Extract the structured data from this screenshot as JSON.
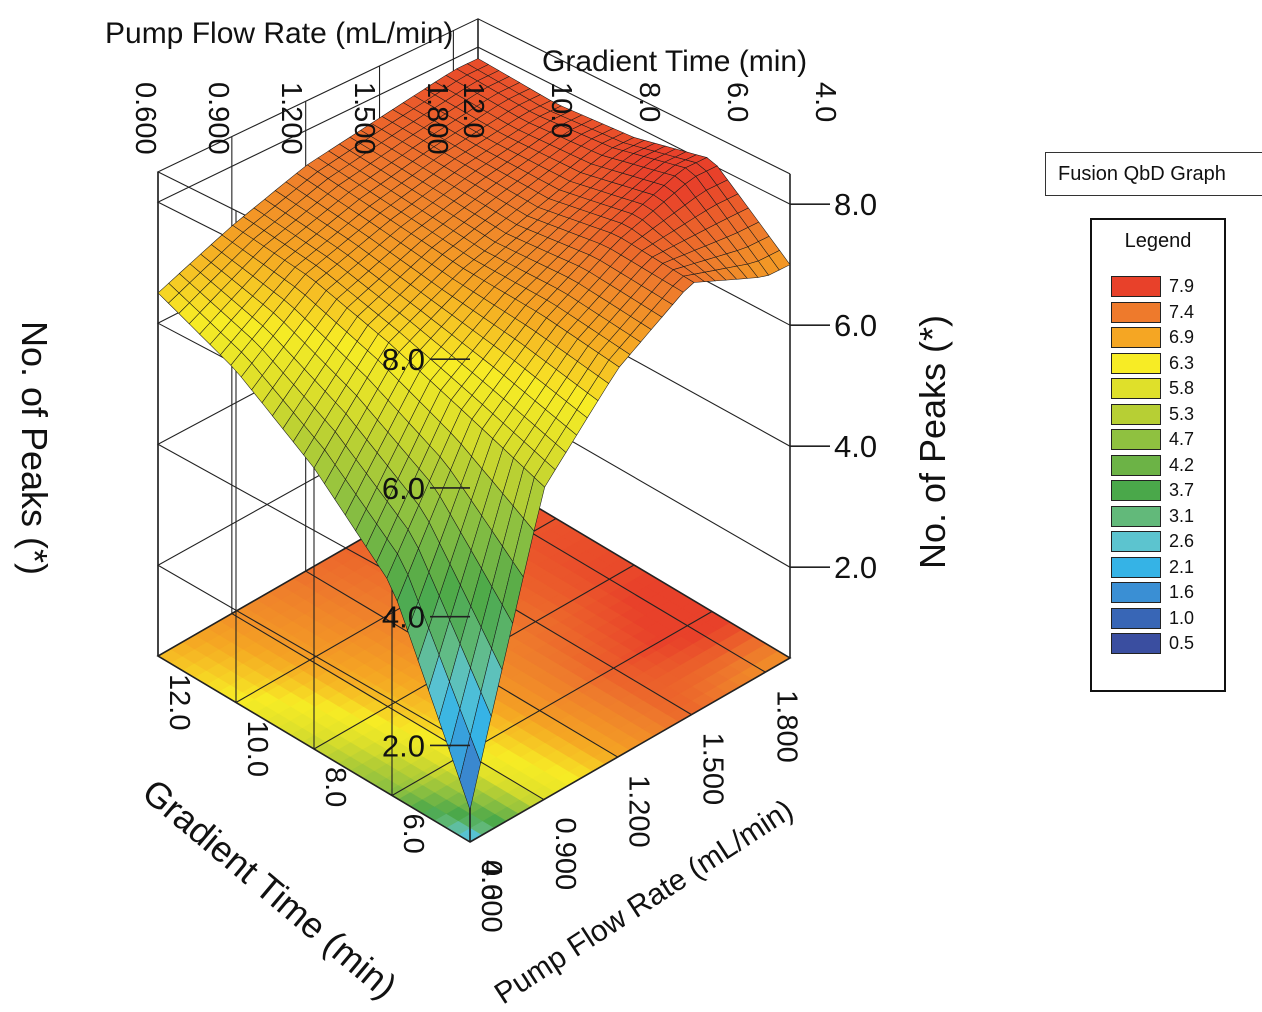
{
  "graph_title": "Fusion QbD Graph",
  "legend": {
    "title": "Legend",
    "items": [
      {
        "label": "7.9",
        "color": "#e8412a"
      },
      {
        "label": "7.4",
        "color": "#ee7a2c"
      },
      {
        "label": "6.9",
        "color": "#f5a623"
      },
      {
        "label": "6.3",
        "color": "#f7ec25"
      },
      {
        "label": "5.8",
        "color": "#dfe02a"
      },
      {
        "label": "5.3",
        "color": "#b7cf34"
      },
      {
        "label": "4.7",
        "color": "#8fc140"
      },
      {
        "label": "4.2",
        "color": "#6cb346"
      },
      {
        "label": "3.7",
        "color": "#4aa84a"
      },
      {
        "label": "3.1",
        "color": "#62b97a"
      },
      {
        "label": "2.6",
        "color": "#5cc4cf"
      },
      {
        "label": "2.1",
        "color": "#35b3e6"
      },
      {
        "label": "1.6",
        "color": "#3a8fd4"
      },
      {
        "label": "1.0",
        "color": "#3866b6"
      },
      {
        "label": "0.5",
        "color": "#3a4ea0"
      }
    ]
  },
  "chart_data": {
    "type": "surface",
    "title": "",
    "x_axis": {
      "label": "Pump Flow Rate (mL/min)",
      "range": [
        0.6,
        1.9
      ],
      "ticks": [
        0.6,
        0.9,
        1.2,
        1.5,
        1.8
      ],
      "tick_labels": [
        "0.600",
        "0.900",
        "1.200",
        "1.500",
        "1.800"
      ]
    },
    "y_axis": {
      "label": "Gradient Time (min)",
      "range": [
        4.0,
        12.0
      ],
      "ticks": [
        4.0,
        6.0,
        8.0,
        10.0,
        12.0
      ],
      "tick_labels": [
        "4.0",
        "6.0",
        "8.0",
        "10.0",
        "12.0"
      ]
    },
    "z_axis": {
      "label": "No. of Peaks (*)",
      "range": [
        0.5,
        8.5
      ],
      "ticks": [
        2.0,
        4.0,
        6.0,
        8.0
      ],
      "tick_labels": [
        "2.0",
        "4.0",
        "6.0",
        "8.0"
      ]
    },
    "flow_values": [
      0.6,
      0.9,
      1.2,
      1.5,
      1.8
    ],
    "time_values": [
      12.0,
      10.0,
      8.0,
      6.0,
      4.0
    ],
    "peaks_grid": [
      [
        6.5,
        7.0,
        7.4,
        7.6,
        7.8
      ],
      [
        5.9,
        6.8,
        7.2,
        7.5,
        7.7
      ],
      [
        5.0,
        6.4,
        7.0,
        7.4,
        7.8
      ],
      [
        3.8,
        5.9,
        6.9,
        7.6,
        8.1
      ],
      [
        1.0,
        5.4,
        6.7,
        7.5,
        7.0
      ]
    ],
    "grid": true,
    "legend_position": "right"
  }
}
